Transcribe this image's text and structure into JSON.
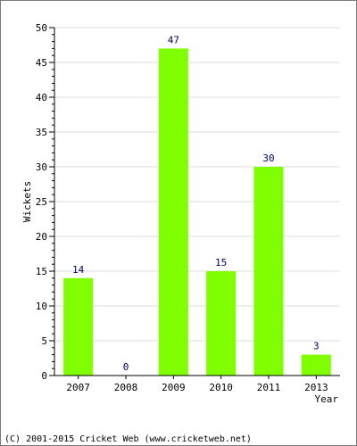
{
  "chart_data": {
    "type": "bar",
    "title": "",
    "xlabel": "Year",
    "ylabel": "Wickets",
    "categories": [
      "2007",
      "2008",
      "2009",
      "2010",
      "2011",
      "2013"
    ],
    "values": [
      14,
      0,
      47,
      15,
      30,
      3
    ],
    "data_labels": [
      "14",
      "0",
      "47",
      "15",
      "30",
      "3"
    ],
    "ylim": [
      0,
      50
    ],
    "yticks": [
      "0",
      "5",
      "10",
      "15",
      "20",
      "25",
      "30",
      "35",
      "40",
      "45",
      "50"
    ],
    "grid": true,
    "bar_color": "#80ff00",
    "label_color": "#000066"
  },
  "footer": {
    "copyright": "(C) 2001-2015 Cricket Web (www.cricketweb.net)"
  }
}
